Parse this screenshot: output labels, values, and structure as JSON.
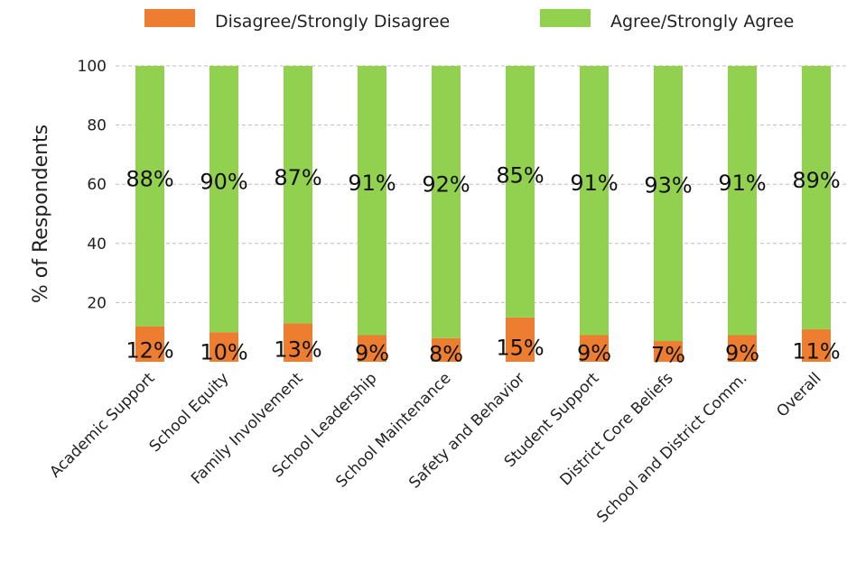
{
  "chart_data": {
    "type": "bar",
    "stacked": true,
    "categories": [
      "Academic Support",
      "School Equity",
      "Family Involvement",
      "School Leadership",
      "School Maintenance",
      "Safety and Behavior",
      "Student Support",
      "District Core Beliefs",
      "School and District Comm.",
      "Overall"
    ],
    "series": [
      {
        "name": "Disagree/Strongly Disagree",
        "color": "#ed7d31",
        "values": [
          12,
          10,
          13,
          9,
          8,
          15,
          9,
          7,
          9,
          11
        ],
        "labels": [
          "12%",
          "10%",
          "13%",
          "9%",
          "8%",
          "15%",
          "9%",
          "7%",
          "9%",
          "11%"
        ]
      },
      {
        "name": "Agree/Strongly Agree",
        "color": "#92d050",
        "values": [
          88,
          90,
          87,
          91,
          92,
          85,
          91,
          93,
          91,
          89
        ],
        "labels": [
          "88%",
          "90%",
          "87%",
          "91%",
          "92%",
          "85%",
          "91%",
          "93%",
          "91%",
          "89%"
        ]
      }
    ],
    "ylabel": "% of Respondents",
    "ylim": [
      0,
      100
    ],
    "yticks": [
      20,
      40,
      60,
      80,
      100
    ],
    "grid": true,
    "legend_position": "top"
  }
}
